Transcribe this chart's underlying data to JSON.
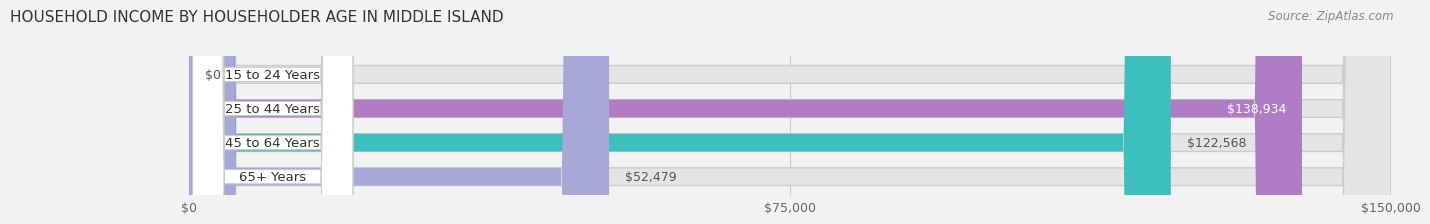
{
  "title": "HOUSEHOLD INCOME BY HOUSEHOLDER AGE IN MIDDLE ISLAND",
  "source": "Source: ZipAtlas.com",
  "categories": [
    "15 to 24 Years",
    "25 to 44 Years",
    "45 to 64 Years",
    "65+ Years"
  ],
  "values": [
    0,
    138934,
    122568,
    52479
  ],
  "bar_colors": [
    "#a8c4e0",
    "#b07cc6",
    "#3dbfbf",
    "#a8a8d8"
  ],
  "bg_color": "#f2f2f2",
  "bar_bg_color": "#e4e4e4",
  "bar_bg_edge": "#cccccc",
  "xlim": [
    0,
    150000
  ],
  "xticks": [
    0,
    75000,
    150000
  ],
  "xtick_labels": [
    "$0",
    "$75,000",
    "$150,000"
  ],
  "value_labels": [
    "$0",
    "$138,934",
    "$122,568",
    "$52,479"
  ],
  "title_fontsize": 11,
  "source_fontsize": 8.5,
  "label_fontsize": 9.5,
  "tick_fontsize": 9,
  "value_fontsize": 9
}
